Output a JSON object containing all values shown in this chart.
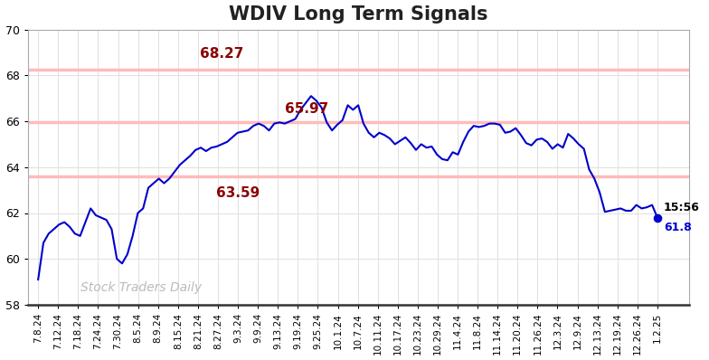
{
  "title": "WDIV Long Term Signals",
  "title_fontsize": 15,
  "title_fontweight": "bold",
  "background_color": "#ffffff",
  "line_color": "#0000cc",
  "line_width": 1.5,
  "ylim": [
    58,
    70
  ],
  "yticks": [
    58,
    60,
    62,
    64,
    66,
    68,
    70
  ],
  "hlines": [
    {
      "y": 68.27,
      "color": "#ffbbbb",
      "linewidth": 2.5
    },
    {
      "y": 65.97,
      "color": "#ffbbbb",
      "linewidth": 2.5
    },
    {
      "y": 63.59,
      "color": "#ffbbbb",
      "linewidth": 2.5
    }
  ],
  "annotation_68": {
    "text": "68.27",
    "xi": 35,
    "y": 68.65,
    "color": "#8b0000",
    "fontsize": 11
  },
  "annotation_65": {
    "text": "65.97",
    "xi": 47,
    "y": 66.25,
    "color": "#8b0000",
    "fontsize": 11
  },
  "annotation_63": {
    "text": "63.59",
    "xi": 38,
    "y": 63.15,
    "color": "#8b0000",
    "fontsize": 11
  },
  "watermark": "Stock Traders Daily",
  "watermark_color": "#bbbbbb",
  "watermark_fontsize": 10,
  "xtick_labels": [
    "7.8.24",
    "7.12.24",
    "7.18.24",
    "7.24.24",
    "7.30.24",
    "8.5.24",
    "8.9.24",
    "8.15.24",
    "8.21.24",
    "8.27.24",
    "9.3.24",
    "9.9.24",
    "9.13.24",
    "9.19.24",
    "9.25.24",
    "10.1.24",
    "10.7.24",
    "10.11.24",
    "10.17.24",
    "10.23.24",
    "10.29.24",
    "11.4.24",
    "11.8.24",
    "11.14.24",
    "11.20.24",
    "11.26.24",
    "12.3.24",
    "12.9.24",
    "12.13.24",
    "12.19.24",
    "12.26.24",
    "1.2.25"
  ],
  "price_data": [
    59.1,
    60.7,
    61.1,
    61.3,
    61.5,
    61.6,
    61.4,
    61.1,
    61.0,
    61.6,
    62.2,
    61.9,
    61.8,
    61.7,
    61.3,
    60.0,
    59.8,
    60.2,
    61.0,
    62.0,
    62.2,
    63.1,
    63.3,
    63.5,
    63.3,
    63.5,
    63.8,
    64.1,
    64.3,
    64.5,
    64.75,
    64.85,
    64.7,
    64.85,
    64.9,
    65.0,
    65.1,
    65.3,
    65.5,
    65.55,
    65.6,
    65.8,
    65.9,
    65.8,
    65.6,
    65.9,
    65.95,
    65.9,
    66.0,
    66.1,
    66.5,
    66.8,
    67.1,
    66.9,
    66.6,
    65.95,
    65.6,
    65.85,
    66.05,
    66.7,
    66.5,
    66.7,
    65.9,
    65.5,
    65.3,
    65.5,
    65.4,
    65.25,
    65.0,
    65.15,
    65.3,
    65.05,
    64.75,
    65.0,
    64.85,
    64.9,
    64.55,
    64.35,
    64.3,
    64.65,
    64.55,
    65.1,
    65.55,
    65.8,
    65.75,
    65.8,
    65.9,
    65.9,
    65.85,
    65.5,
    65.55,
    65.7,
    65.4,
    65.05,
    64.95,
    65.2,
    65.25,
    65.1,
    64.8,
    65.0,
    64.85,
    65.45,
    65.25,
    65.0,
    64.8,
    63.9,
    63.5,
    62.9,
    62.05,
    62.1,
    62.15,
    62.2,
    62.1,
    62.1,
    62.35,
    62.2,
    62.25,
    62.35,
    61.8
  ],
  "last_time": "15:56",
  "last_price": "61.8",
  "dot_color": "#0000cc",
  "dot_size": 35
}
